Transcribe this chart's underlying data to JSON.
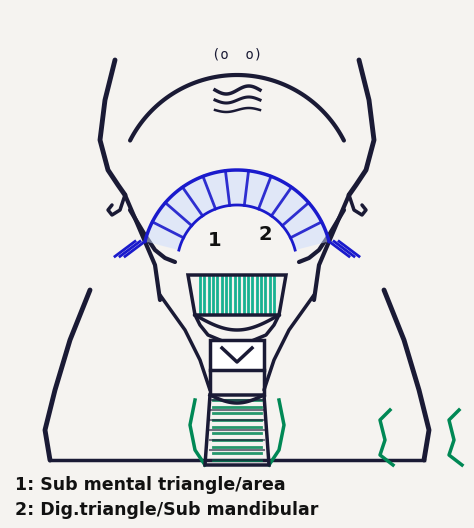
{
  "background_color": "#f5f3f0",
  "text_label1": "1: Sub mental triangle/area",
  "text_label2": "2: Dig.triangle/Sub mandibular",
  "label_color": "#111111",
  "label_fontsize": 12.5,
  "label_fontweight": "bold",
  "outline_color": "#1a1a35",
  "blue_color": "#1a1acc",
  "blue_dark": "#0000aa",
  "green_color": "#008855",
  "teal_color": "#00aa88"
}
